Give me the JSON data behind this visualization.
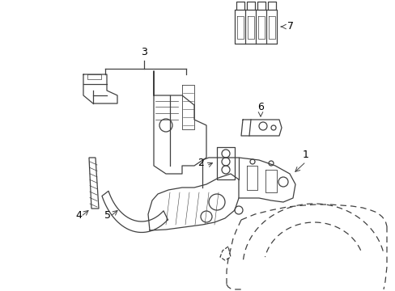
{
  "background_color": "#ffffff",
  "line_color": "#404040",
  "label_color": "#000000",
  "figure_width": 4.89,
  "figure_height": 3.6,
  "dpi": 100,
  "label_fontsize": 9,
  "arrow_lw": 0.7,
  "part_lw": 0.9
}
